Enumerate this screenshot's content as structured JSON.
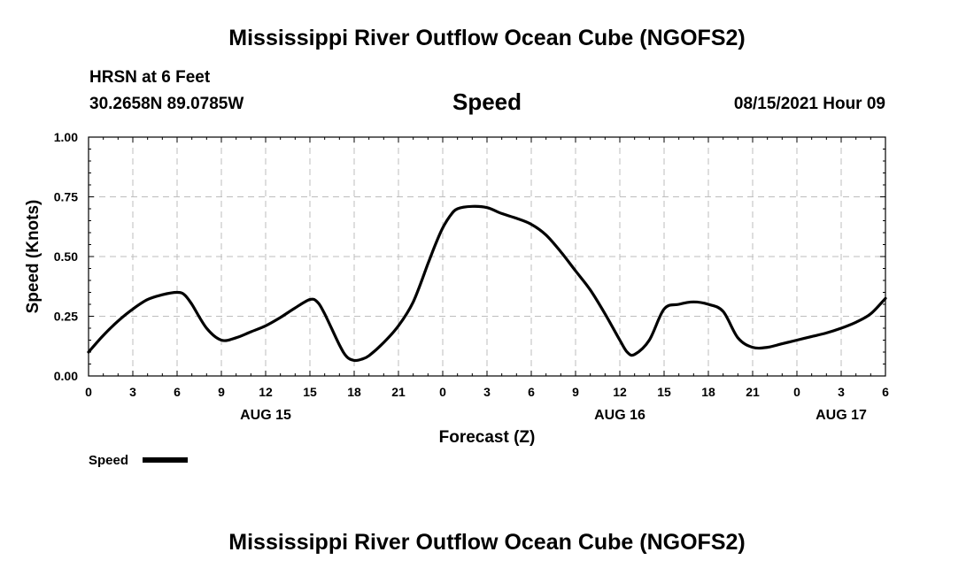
{
  "header": {
    "title": "Mississippi River Outflow Ocean Cube (NGOFS2)",
    "station": "HRSN at 6 Feet",
    "coordinates": "30.2658N  89.0785W",
    "panel_label": "Speed",
    "datetime": "08/15/2021 Hour 09"
  },
  "footer": {
    "title": "Mississippi River Outflow Ocean Cube (NGOFS2)"
  },
  "chart_data": {
    "type": "line",
    "title": "Speed",
    "xlabel": "Forecast (Z)",
    "ylabel": "Speed (Knots)",
    "xlim": [
      0,
      54
    ],
    "ylim": [
      0,
      1.0
    ],
    "grid": true,
    "x_ticks": [
      0,
      3,
      6,
      9,
      12,
      15,
      18,
      21,
      24,
      27,
      30,
      33,
      36,
      39,
      42,
      45,
      48,
      51,
      54
    ],
    "x_tick_labels": [
      "0",
      "3",
      "6",
      "9",
      "12",
      "15",
      "18",
      "21",
      "0",
      "3",
      "6",
      "9",
      "12",
      "15",
      "18",
      "21",
      "0",
      "3",
      "6"
    ],
    "y_ticks": [
      0,
      0.25,
      0.5,
      0.75,
      1.0
    ],
    "y_tick_labels": [
      "0.00",
      "0.25",
      "0.50",
      "0.75",
      "1.00"
    ],
    "date_labels": [
      {
        "x": 12,
        "label": "AUG 15"
      },
      {
        "x": 36,
        "label": "AUG 16"
      },
      {
        "x": 51,
        "label": "AUG 17"
      }
    ],
    "legend": {
      "label": "Speed",
      "placement": "bottom-left"
    },
    "series": [
      {
        "name": "Speed",
        "x": [
          0,
          1,
          2,
          3,
          4,
          5,
          6,
          6.5,
          7,
          8,
          9,
          10,
          11,
          12,
          13,
          14,
          15,
          15.5,
          16,
          17,
          17.5,
          18,
          18.5,
          19,
          20,
          21,
          22,
          23,
          23.5,
          24,
          24.5,
          25,
          26,
          27,
          28,
          29,
          30,
          31,
          32,
          33,
          34,
          35,
          36,
          36.5,
          37,
          38,
          39,
          40,
          41,
          42,
          43,
          44,
          45,
          46,
          47,
          48,
          49,
          50,
          51,
          52,
          53,
          54
        ],
        "values": [
          0.1,
          0.17,
          0.23,
          0.28,
          0.32,
          0.34,
          0.35,
          0.34,
          0.3,
          0.2,
          0.15,
          0.16,
          0.185,
          0.21,
          0.245,
          0.285,
          0.32,
          0.31,
          0.26,
          0.13,
          0.08,
          0.065,
          0.07,
          0.085,
          0.14,
          0.21,
          0.31,
          0.47,
          0.55,
          0.62,
          0.67,
          0.7,
          0.71,
          0.705,
          0.68,
          0.66,
          0.635,
          0.59,
          0.52,
          0.44,
          0.36,
          0.26,
          0.15,
          0.1,
          0.09,
          0.15,
          0.28,
          0.3,
          0.31,
          0.3,
          0.27,
          0.16,
          0.12,
          0.12,
          0.135,
          0.15,
          0.165,
          0.18,
          0.2,
          0.225,
          0.26,
          0.325
        ]
      }
    ]
  }
}
